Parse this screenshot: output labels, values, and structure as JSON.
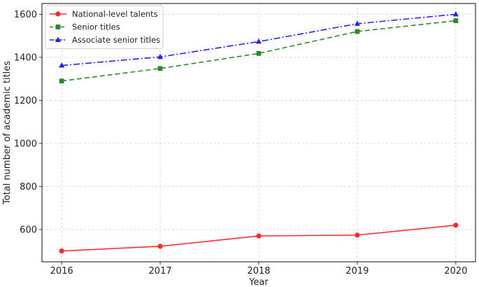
{
  "chart_data": {
    "type": "line",
    "x": [
      2016,
      2017,
      2018,
      2019,
      2020
    ],
    "xlabel": "Year",
    "ylabel": "Total number of academic titles",
    "ylim": [
      450,
      1650
    ],
    "yticks": [
      600,
      800,
      1000,
      1200,
      1400,
      1600
    ],
    "grid": true,
    "legend_position": "top-left",
    "series": [
      {
        "name": "National-level talents",
        "values": [
          500,
          522,
          570,
          574,
          620
        ],
        "color": "#ff2a2a",
        "linestyle": "solid",
        "marker": "circle"
      },
      {
        "name": "Senior titles",
        "values": [
          1290,
          1348,
          1418,
          1520,
          1570
        ],
        "color": "#2a8a2a",
        "linestyle": "dashed",
        "marker": "square"
      },
      {
        "name": "Associate senior titles",
        "values": [
          1362,
          1402,
          1473,
          1556,
          1600
        ],
        "color": "#2222ee",
        "linestyle": "dashdot",
        "marker": "triangle"
      }
    ]
  }
}
